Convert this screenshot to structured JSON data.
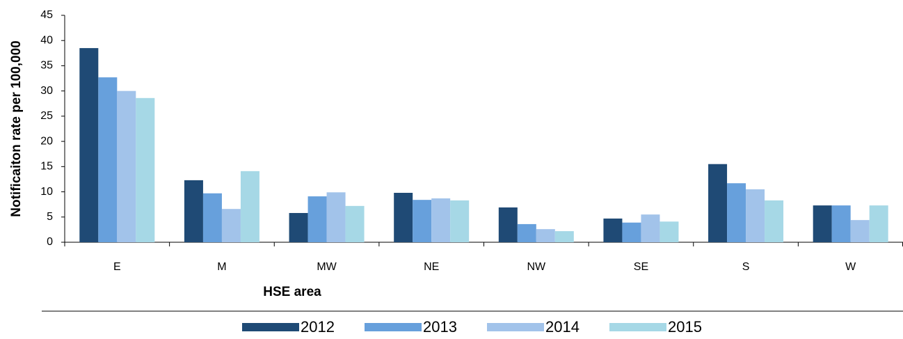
{
  "chart_data": {
    "type": "bar",
    "x_label": "HSE area",
    "y_label": "Notificaiton rate per 100,000",
    "categories": [
      "E",
      "M",
      "MW",
      "NE",
      "NW",
      "SE",
      "S",
      "W"
    ],
    "series": [
      {
        "name": "2012",
        "color": "#1f4a75",
        "values": [
          38.5,
          12.3,
          5.8,
          9.8,
          6.9,
          4.7,
          15.5,
          7.3
        ]
      },
      {
        "name": "2013",
        "color": "#67a0dc",
        "values": [
          32.7,
          9.7,
          9.1,
          8.4,
          3.6,
          3.9,
          11.7,
          7.3
        ]
      },
      {
        "name": "2014",
        "color": "#a2c3ea",
        "values": [
          30.0,
          6.6,
          9.9,
          8.7,
          2.6,
          5.5,
          10.5,
          4.4
        ]
      },
      {
        "name": "2015",
        "color": "#a6d8e6",
        "values": [
          28.6,
          14.1,
          7.2,
          8.3,
          2.2,
          4.1,
          8.3,
          7.3
        ]
      }
    ],
    "ylim": [
      0,
      45
    ],
    "yticks": [
      0,
      5,
      10,
      15,
      20,
      25,
      30,
      35,
      40,
      45
    ],
    "legend": "bottom"
  }
}
